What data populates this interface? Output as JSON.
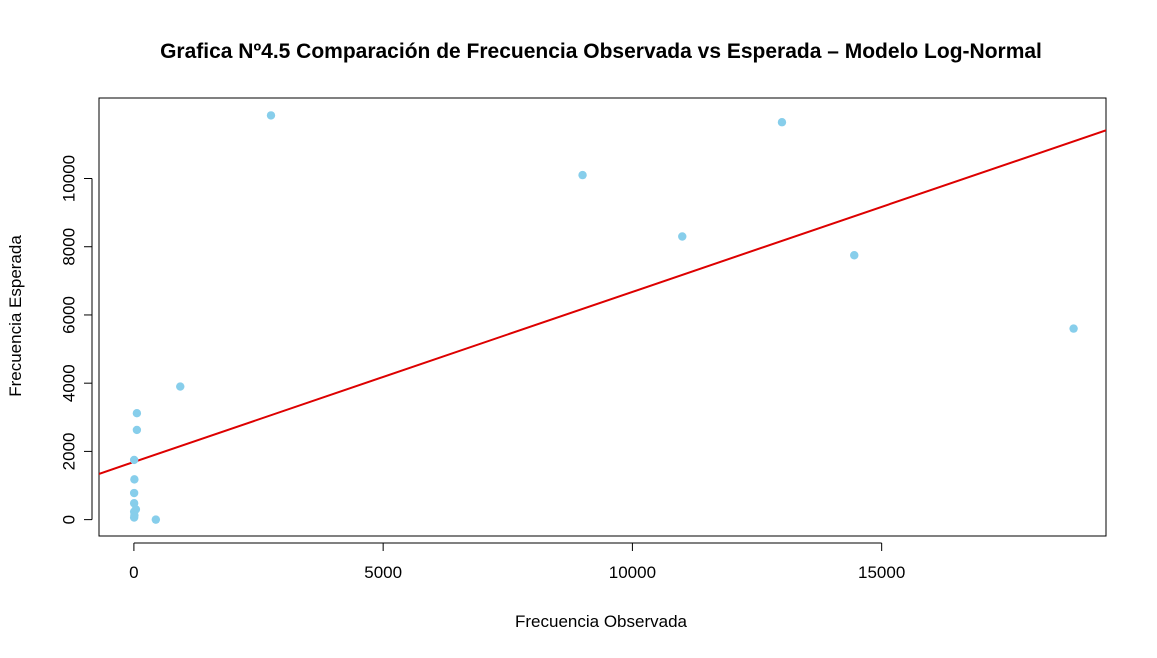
{
  "chart_data": {
    "type": "scatter",
    "title": "Grafica Nº4.5 Comparación de Frecuencia Observada vs Esperada – Modelo Log-Normal",
    "xlabel": "Frecuencia Observada",
    "ylabel": "Frecuencia Esperada",
    "xlim": [
      -700,
      19500
    ],
    "ylim": [
      -480,
      12360
    ],
    "xticks": [
      0,
      5000,
      10000,
      15000
    ],
    "xtick_labels": [
      "0",
      "5000",
      "10000",
      "15000"
    ],
    "yticks": [
      0,
      2000,
      4000,
      6000,
      8000,
      10000
    ],
    "ytick_labels": [
      "0",
      "2000",
      "4000",
      "6000",
      "8000",
      "10000"
    ],
    "grid": false,
    "point_color": "#87ceeb",
    "line_color": "#dd0000",
    "points": [
      {
        "x": 2750,
        "y": 11850
      },
      {
        "x": 13000,
        "y": 11650
      },
      {
        "x": 9000,
        "y": 10100
      },
      {
        "x": 11000,
        "y": 8300
      },
      {
        "x": 14450,
        "y": 7750
      },
      {
        "x": 18850,
        "y": 5600
      },
      {
        "x": 930,
        "y": 3900
      },
      {
        "x": 60,
        "y": 3120
      },
      {
        "x": 60,
        "y": 2630
      },
      {
        "x": 5,
        "y": 1750
      },
      {
        "x": 10,
        "y": 1180
      },
      {
        "x": 5,
        "y": 780
      },
      {
        "x": 5,
        "y": 480
      },
      {
        "x": 40,
        "y": 300
      },
      {
        "x": 5,
        "y": 230
      },
      {
        "x": 10,
        "y": 130
      },
      {
        "x": 5,
        "y": 60
      },
      {
        "x": 440,
        "y": 0
      }
    ],
    "fit_line": {
      "intercept": 1690,
      "slope": 0.4986
    }
  }
}
